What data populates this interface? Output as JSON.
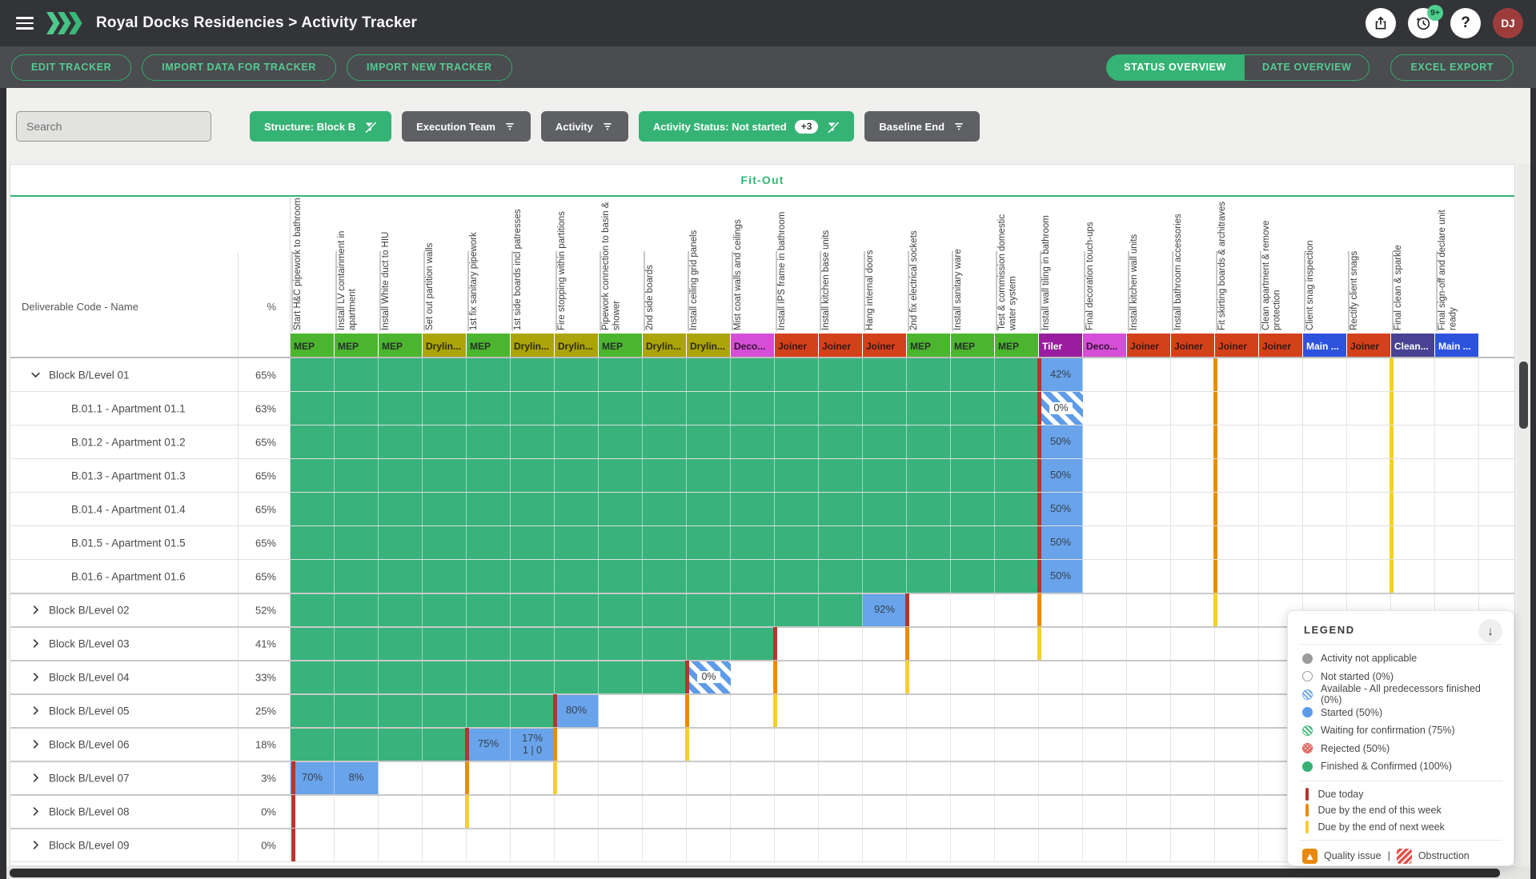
{
  "topbar": {
    "title": "Royal Docks Residencies > Activity Tracker",
    "history_badge": "9+",
    "avatar_initials": "DJ"
  },
  "toolbar": {
    "buttons": [
      "EDIT TRACKER",
      "IMPORT DATA FOR TRACKER",
      "IMPORT NEW TRACKER"
    ],
    "views": [
      "STATUS OVERVIEW",
      "DATE OVERVIEW"
    ],
    "active_view": "STATUS OVERVIEW",
    "export_label": "EXCEL EXPORT"
  },
  "filters": {
    "search_placeholder": "Search",
    "chips": [
      {
        "label": "Structure: Block B",
        "style": "green",
        "icon": "filter-off"
      },
      {
        "label": "Execution Team",
        "style": "gray",
        "icon": "filter-list"
      },
      {
        "label": "Activity",
        "style": "gray",
        "icon": "filter-list"
      },
      {
        "label": "Activity Status: Not started",
        "style": "green",
        "icon": "filter-off",
        "badge": "+3"
      },
      {
        "label": "Baseline End",
        "style": "gray",
        "icon": "filter-list"
      }
    ]
  },
  "table": {
    "phase": "Fit-Out",
    "left_header": "Deliverable Code - Name",
    "pct_header": "%",
    "columns": [
      {
        "label": "Start H&C pipework to bathroom",
        "team": "MEP"
      },
      {
        "label": "Install LV containment in apartment",
        "team": "MEP"
      },
      {
        "label": "Install White duct to HIU",
        "team": "MEP"
      },
      {
        "label": "Set out partition walls",
        "team": "Drylin..."
      },
      {
        "label": "1st fix sanitary pipework",
        "team": "MEP"
      },
      {
        "label": "1st side boards incl patresses",
        "team": "Drylin..."
      },
      {
        "label": "Fire stopping within partitions",
        "team": "Drylin..."
      },
      {
        "label": "Pipework connection to basin & shower",
        "team": "MEP"
      },
      {
        "label": "2nd side boards",
        "team": "Drylin..."
      },
      {
        "label": "Install ceiling grid panels",
        "team": "Drylin..."
      },
      {
        "label": "Mist coat walls and ceilings",
        "team": "Deco..."
      },
      {
        "label": "Install IPS frame in bathroom",
        "team": "Joiner"
      },
      {
        "label": "Install kitchen base units",
        "team": "Joiner"
      },
      {
        "label": "Hang internal doors",
        "team": "Joiner"
      },
      {
        "label": "2nd fix electrical sockets",
        "team": "MEP"
      },
      {
        "label": "Install sanitary ware",
        "team": "MEP"
      },
      {
        "label": "Test & commission domestic water system",
        "team": "MEP"
      },
      {
        "label": "Install wall tiling in bathroom",
        "team": "Tiler"
      },
      {
        "label": "Final decoration touch-ups",
        "team": "Deco..."
      },
      {
        "label": "Install kitchen wall units",
        "team": "Joiner"
      },
      {
        "label": "Install bathroom accessories",
        "team": "Joiner"
      },
      {
        "label": "Fit skirting boards & architraves",
        "team": "Joiner"
      },
      {
        "label": "Clean apartment & remove protection",
        "team": "Joiner"
      },
      {
        "label": "Client snag inspection",
        "team": "Main ..."
      },
      {
        "label": "Rectify client snags",
        "team": "Joiner"
      },
      {
        "label": "Final clean & sparkle",
        "team": "Clean..."
      },
      {
        "label": "Final sign-off and declare unit ready",
        "team": "Main ..."
      }
    ],
    "rows": [
      {
        "name": "Block B/Level 01",
        "pct": "65%",
        "type": "group",
        "expanded": true,
        "done_to": 17,
        "cells": [
          {
            "col": 18,
            "state": "started",
            "pct": "42%"
          }
        ],
        "markers": [
          {
            "col": 18,
            "due": "today"
          },
          {
            "col": 22,
            "due": "this_week"
          },
          {
            "col": 26,
            "due": "next_week"
          }
        ]
      },
      {
        "name": "B.01.1 - Apartment 01.1",
        "pct": "63%",
        "type": "child",
        "done_to": 17,
        "cells": [
          {
            "col": 18,
            "state": "available",
            "pct": "0%"
          }
        ],
        "markers": [
          {
            "col": 18,
            "due": "today"
          },
          {
            "col": 22,
            "due": "this_week"
          },
          {
            "col": 26,
            "due": "next_week"
          }
        ]
      },
      {
        "name": "B.01.2 - Apartment 01.2",
        "pct": "65%",
        "type": "child",
        "done_to": 17,
        "cells": [
          {
            "col": 18,
            "state": "started",
            "pct": "50%"
          }
        ],
        "markers": [
          {
            "col": 18,
            "due": "today"
          },
          {
            "col": 22,
            "due": "this_week"
          },
          {
            "col": 26,
            "due": "next_week"
          }
        ]
      },
      {
        "name": "B.01.3 - Apartment 01.3",
        "pct": "65%",
        "type": "child",
        "done_to": 17,
        "cells": [
          {
            "col": 18,
            "state": "started",
            "pct": "50%"
          }
        ],
        "markers": [
          {
            "col": 18,
            "due": "today"
          },
          {
            "col": 22,
            "due": "this_week"
          },
          {
            "col": 26,
            "due": "next_week"
          }
        ]
      },
      {
        "name": "B.01.4 - Apartment 01.4",
        "pct": "65%",
        "type": "child",
        "done_to": 17,
        "cells": [
          {
            "col": 18,
            "state": "started",
            "pct": "50%"
          }
        ],
        "markers": [
          {
            "col": 18,
            "due": "today"
          },
          {
            "col": 22,
            "due": "this_week"
          },
          {
            "col": 26,
            "due": "next_week"
          }
        ]
      },
      {
        "name": "B.01.5 - Apartment 01.5",
        "pct": "65%",
        "type": "child",
        "done_to": 17,
        "cells": [
          {
            "col": 18,
            "state": "started",
            "pct": "50%"
          }
        ],
        "markers": [
          {
            "col": 18,
            "due": "today"
          },
          {
            "col": 22,
            "due": "this_week"
          },
          {
            "col": 26,
            "due": "next_week"
          }
        ]
      },
      {
        "name": "B.01.6 - Apartment 01.6",
        "pct": "65%",
        "type": "child",
        "done_to": 17,
        "cells": [
          {
            "col": 18,
            "state": "started",
            "pct": "50%"
          }
        ],
        "markers": [
          {
            "col": 18,
            "due": "today"
          },
          {
            "col": 22,
            "due": "this_week"
          },
          {
            "col": 26,
            "due": "next_week"
          }
        ]
      },
      {
        "name": "Block B/Level 02",
        "pct": "52%",
        "type": "group",
        "expanded": false,
        "done_to": 13,
        "cells": [
          {
            "col": 14,
            "state": "started",
            "pct": "92%"
          }
        ],
        "markers": [
          {
            "col": 15,
            "due": "today"
          },
          {
            "col": 18,
            "due": "this_week"
          },
          {
            "col": 22,
            "due": "next_week"
          }
        ]
      },
      {
        "name": "Block B/Level 03",
        "pct": "41%",
        "type": "group",
        "expanded": false,
        "done_to": 11,
        "cells": [],
        "markers": [
          {
            "col": 12,
            "due": "today"
          },
          {
            "col": 15,
            "due": "this_week"
          },
          {
            "col": 18,
            "due": "next_week"
          }
        ]
      },
      {
        "name": "Block B/Level 04",
        "pct": "33%",
        "type": "group",
        "expanded": false,
        "done_to": 9,
        "cells": [
          {
            "col": 10,
            "state": "available",
            "pct": "0%"
          }
        ],
        "markers": [
          {
            "col": 10,
            "due": "today"
          },
          {
            "col": 12,
            "due": "this_week"
          },
          {
            "col": 15,
            "due": "next_week"
          }
        ]
      },
      {
        "name": "Block B/Level 05",
        "pct": "25%",
        "type": "group",
        "expanded": false,
        "done_to": 6,
        "cells": [
          {
            "col": 7,
            "state": "started",
            "pct": "80%"
          }
        ],
        "markers": [
          {
            "col": 7,
            "due": "today"
          },
          {
            "col": 10,
            "due": "this_week"
          },
          {
            "col": 12,
            "due": "next_week"
          }
        ]
      },
      {
        "name": "Block B/Level 06",
        "pct": "18%",
        "type": "group",
        "expanded": false,
        "done_to": 4,
        "cells": [
          {
            "col": 5,
            "state": "started",
            "pct": "75%"
          },
          {
            "col": 6,
            "state": "started",
            "pct": "17%",
            "sub": "1 | 0"
          }
        ],
        "markers": [
          {
            "col": 5,
            "due": "today"
          },
          {
            "col": 7,
            "due": "this_week"
          },
          {
            "col": 10,
            "due": "next_week"
          }
        ]
      },
      {
        "name": "Block B/Level 07",
        "pct": "3%",
        "type": "group",
        "expanded": false,
        "done_to": 0,
        "cells": [
          {
            "col": 1,
            "state": "started",
            "pct": "70%"
          },
          {
            "col": 2,
            "state": "started",
            "pct": "8%"
          }
        ],
        "markers": [
          {
            "col": 1,
            "due": "today"
          },
          {
            "col": 5,
            "due": "this_week"
          },
          {
            "col": 7,
            "due": "next_week"
          }
        ]
      },
      {
        "name": "Block B/Level 08",
        "pct": "0%",
        "type": "group",
        "expanded": false,
        "done_to": 0,
        "cells": [],
        "markers": [
          {
            "col": 1,
            "due": "today"
          },
          {
            "col": 5,
            "due": "next_week"
          }
        ]
      },
      {
        "name": "Block B/Level 09",
        "pct": "0%",
        "type": "group",
        "expanded": false,
        "done_to": 0,
        "cells": [],
        "markers": [
          {
            "col": 1,
            "due": "today"
          }
        ]
      }
    ]
  },
  "legend": {
    "title": "LEGEND",
    "statuses": [
      {
        "type": "gray",
        "label": "Activity not applicable"
      },
      {
        "type": "outline",
        "label": "Not started  (0%)"
      },
      {
        "type": "hblue",
        "label": "Available - All predecessors finished  (0%)"
      },
      {
        "type": "blue",
        "label": "Started  (50%)"
      },
      {
        "type": "hgreen",
        "label": "Waiting for confirmation  (75%)"
      },
      {
        "type": "hred",
        "label": "Rejected  (50%)"
      },
      {
        "type": "green",
        "label": "Finished & Confirmed  (100%)"
      }
    ],
    "due": [
      {
        "due": "today",
        "label": "Due today"
      },
      {
        "due": "this_week",
        "label": "Due by the end of this week"
      },
      {
        "due": "next_week",
        "label": "Due by the end of next week"
      }
    ],
    "quality_label": "Quality issue",
    "separator": "|",
    "obstruction_label": "Obstruction"
  },
  "colors": {
    "accent_green": "#35B374",
    "done_cell": "#39B27B",
    "started_cell": "#69A3EA",
    "hatch_blue": "#5E9BE8",
    "due_today": "#B3362F",
    "due_this_week": "#EC8B00",
    "due_next_week": "#F6CE2F",
    "teams": {
      "MEP": {
        "bg": "#4CB52F",
        "fg": "#24312A"
      },
      "Drylin...": {
        "bg": "#ABA40A",
        "fg": "#2E2B14"
      },
      "Deco...": {
        "bg": "#D44ED6",
        "fg": "#33122F"
      },
      "Joiner": {
        "bg": "#D3411B",
        "fg": "#331712"
      },
      "Tiler": {
        "bg": "#9A1C9F",
        "fg": "#FFFFFF"
      },
      "Main ...": {
        "bg": "#2D53DE",
        "fg": "#FFFFFF"
      },
      "Clean...": {
        "bg": "#474293",
        "fg": "#FFFFFF"
      }
    }
  }
}
